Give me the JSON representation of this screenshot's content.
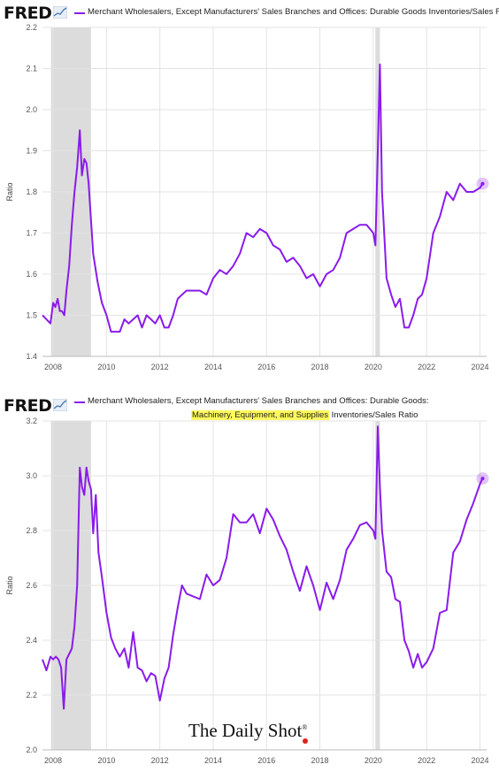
{
  "brand": "FRED",
  "watermark": "The Daily Shot",
  "watermark_mark": "®",
  "colors": {
    "series": "#8a1bea",
    "recession": "#dcdcdc",
    "grid": "#e3e3e3",
    "highlight": "#fff95c"
  },
  "icons": [
    "fred-chart-icon"
  ],
  "chart_data": [
    {
      "type": "line",
      "legend": "Merchant Wholesalers, Except Manufacturers' Sales Branches and Offices: Durable Goods Inventories/Sales Ratio",
      "ylabel": "Ratio",
      "xlim": [
        2007.6,
        2024.25
      ],
      "ylim": [
        1.4,
        2.2
      ],
      "yticks": [
        "1.4",
        "1.5",
        "1.6",
        "1.7",
        "1.8",
        "1.9",
        "2.0",
        "2.1",
        "2.2"
      ],
      "xticks": [
        "2008",
        "2010",
        "2012",
        "2014",
        "2016",
        "2018",
        "2020",
        "2022",
        "2024"
      ],
      "recessions": [
        [
          2007.92,
          2009.42
        ],
        [
          2020.08,
          2020.25
        ]
      ],
      "series": [
        {
          "x": [
            2007.6,
            2007.75,
            2007.9,
            2008.0,
            2008.08,
            2008.17,
            2008.25,
            2008.33,
            2008.42,
            2008.5,
            2008.6,
            2008.7,
            2008.8,
            2008.9,
            2009.0,
            2009.08,
            2009.17,
            2009.25,
            2009.33,
            2009.5,
            2009.67,
            2009.83,
            2010.0,
            2010.17,
            2010.33,
            2010.5,
            2010.67,
            2010.83,
            2011.0,
            2011.17,
            2011.33,
            2011.5,
            2011.67,
            2011.83,
            2012.0,
            2012.17,
            2012.33,
            2012.5,
            2012.67,
            2012.83,
            2013.0,
            2013.25,
            2013.5,
            2013.75,
            2014.0,
            2014.25,
            2014.5,
            2014.75,
            2015.0,
            2015.25,
            2015.5,
            2015.75,
            2016.0,
            2016.25,
            2016.5,
            2016.75,
            2017.0,
            2017.25,
            2017.5,
            2017.75,
            2018.0,
            2018.25,
            2018.5,
            2018.75,
            2019.0,
            2019.25,
            2019.5,
            2019.75,
            2020.0,
            2020.08,
            2020.17,
            2020.25,
            2020.33,
            2020.5,
            2020.67,
            2020.83,
            2021.0,
            2021.17,
            2021.33,
            2021.5,
            2021.67,
            2021.83,
            2022.0,
            2022.25,
            2022.5,
            2022.75,
            2023.0,
            2023.25,
            2023.5,
            2023.75,
            2024.0,
            2024.1
          ],
          "y": [
            1.5,
            1.49,
            1.48,
            1.53,
            1.52,
            1.54,
            1.51,
            1.51,
            1.5,
            1.56,
            1.62,
            1.72,
            1.8,
            1.86,
            1.95,
            1.84,
            1.88,
            1.87,
            1.82,
            1.65,
            1.58,
            1.53,
            1.5,
            1.46,
            1.46,
            1.46,
            1.49,
            1.48,
            1.49,
            1.5,
            1.47,
            1.5,
            1.49,
            1.48,
            1.5,
            1.47,
            1.47,
            1.5,
            1.54,
            1.55,
            1.56,
            1.56,
            1.56,
            1.55,
            1.59,
            1.61,
            1.6,
            1.62,
            1.65,
            1.7,
            1.69,
            1.71,
            1.7,
            1.67,
            1.66,
            1.63,
            1.64,
            1.62,
            1.59,
            1.6,
            1.57,
            1.6,
            1.61,
            1.64,
            1.7,
            1.71,
            1.72,
            1.72,
            1.7,
            1.67,
            1.9,
            2.11,
            1.8,
            1.59,
            1.55,
            1.52,
            1.54,
            1.47,
            1.47,
            1.5,
            1.54,
            1.55,
            1.59,
            1.7,
            1.74,
            1.8,
            1.78,
            1.82,
            1.8,
            1.8,
            1.81,
            1.82
          ]
        }
      ]
    },
    {
      "type": "line",
      "legend_line1": "Merchant Wholesalers, Except Manufacturers' Sales Branches and Offices: Durable Goods:",
      "legend_line2_highlight": "Machinery, Equipment, and Supplies",
      "legend_line2_rest": " Inventories/Sales Ratio",
      "ylabel": "Ratio",
      "xlim": [
        2007.6,
        2024.25
      ],
      "ylim": [
        2.0,
        3.2
      ],
      "yticks": [
        "2.0",
        "2.2",
        "2.4",
        "2.6",
        "2.8",
        "3.0",
        "3.2"
      ],
      "xticks": [
        "2008",
        "2010",
        "2012",
        "2014",
        "2016",
        "2018",
        "2020",
        "2022",
        "2024"
      ],
      "recessions": [
        [
          2007.92,
          2009.42
        ],
        [
          2020.08,
          2020.25
        ]
      ],
      "series": [
        {
          "x": [
            2007.6,
            2007.75,
            2007.9,
            2008.0,
            2008.1,
            2008.2,
            2008.3,
            2008.4,
            2008.5,
            2008.6,
            2008.7,
            2008.8,
            2008.9,
            2009.0,
            2009.08,
            2009.17,
            2009.25,
            2009.33,
            2009.42,
            2009.5,
            2009.6,
            2009.7,
            2009.83,
            2010.0,
            2010.17,
            2010.33,
            2010.5,
            2010.67,
            2010.83,
            2011.0,
            2011.17,
            2011.33,
            2011.5,
            2011.67,
            2011.83,
            2012.0,
            2012.17,
            2012.33,
            2012.5,
            2012.67,
            2012.83,
            2013.0,
            2013.25,
            2013.5,
            2013.75,
            2014.0,
            2014.25,
            2014.5,
            2014.75,
            2015.0,
            2015.25,
            2015.5,
            2015.75,
            2016.0,
            2016.25,
            2016.5,
            2016.75,
            2017.0,
            2017.25,
            2017.5,
            2017.75,
            2018.0,
            2018.25,
            2018.5,
            2018.75,
            2019.0,
            2019.25,
            2019.5,
            2019.75,
            2020.0,
            2020.08,
            2020.17,
            2020.25,
            2020.33,
            2020.5,
            2020.67,
            2020.83,
            2021.0,
            2021.17,
            2021.33,
            2021.5,
            2021.67,
            2021.83,
            2022.0,
            2022.25,
            2022.5,
            2022.75,
            2023.0,
            2023.25,
            2023.5,
            2023.75,
            2024.0,
            2024.1
          ],
          "y": [
            2.33,
            2.29,
            2.34,
            2.33,
            2.34,
            2.33,
            2.3,
            2.15,
            2.33,
            2.35,
            2.37,
            2.45,
            2.6,
            3.03,
            2.96,
            2.93,
            3.03,
            2.98,
            2.95,
            2.79,
            2.93,
            2.72,
            2.63,
            2.5,
            2.41,
            2.37,
            2.34,
            2.37,
            2.3,
            2.43,
            2.3,
            2.29,
            2.25,
            2.28,
            2.27,
            2.18,
            2.26,
            2.3,
            2.42,
            2.52,
            2.6,
            2.57,
            2.56,
            2.55,
            2.64,
            2.6,
            2.62,
            2.7,
            2.86,
            2.83,
            2.83,
            2.86,
            2.79,
            2.88,
            2.84,
            2.78,
            2.73,
            2.65,
            2.58,
            2.67,
            2.6,
            2.51,
            2.61,
            2.55,
            2.62,
            2.73,
            2.77,
            2.82,
            2.83,
            2.8,
            2.77,
            3.18,
            2.96,
            2.8,
            2.65,
            2.63,
            2.55,
            2.54,
            2.4,
            2.36,
            2.3,
            2.35,
            2.3,
            2.32,
            2.37,
            2.5,
            2.51,
            2.72,
            2.76,
            2.84,
            2.9,
            2.97,
            2.99
          ]
        }
      ]
    }
  ]
}
